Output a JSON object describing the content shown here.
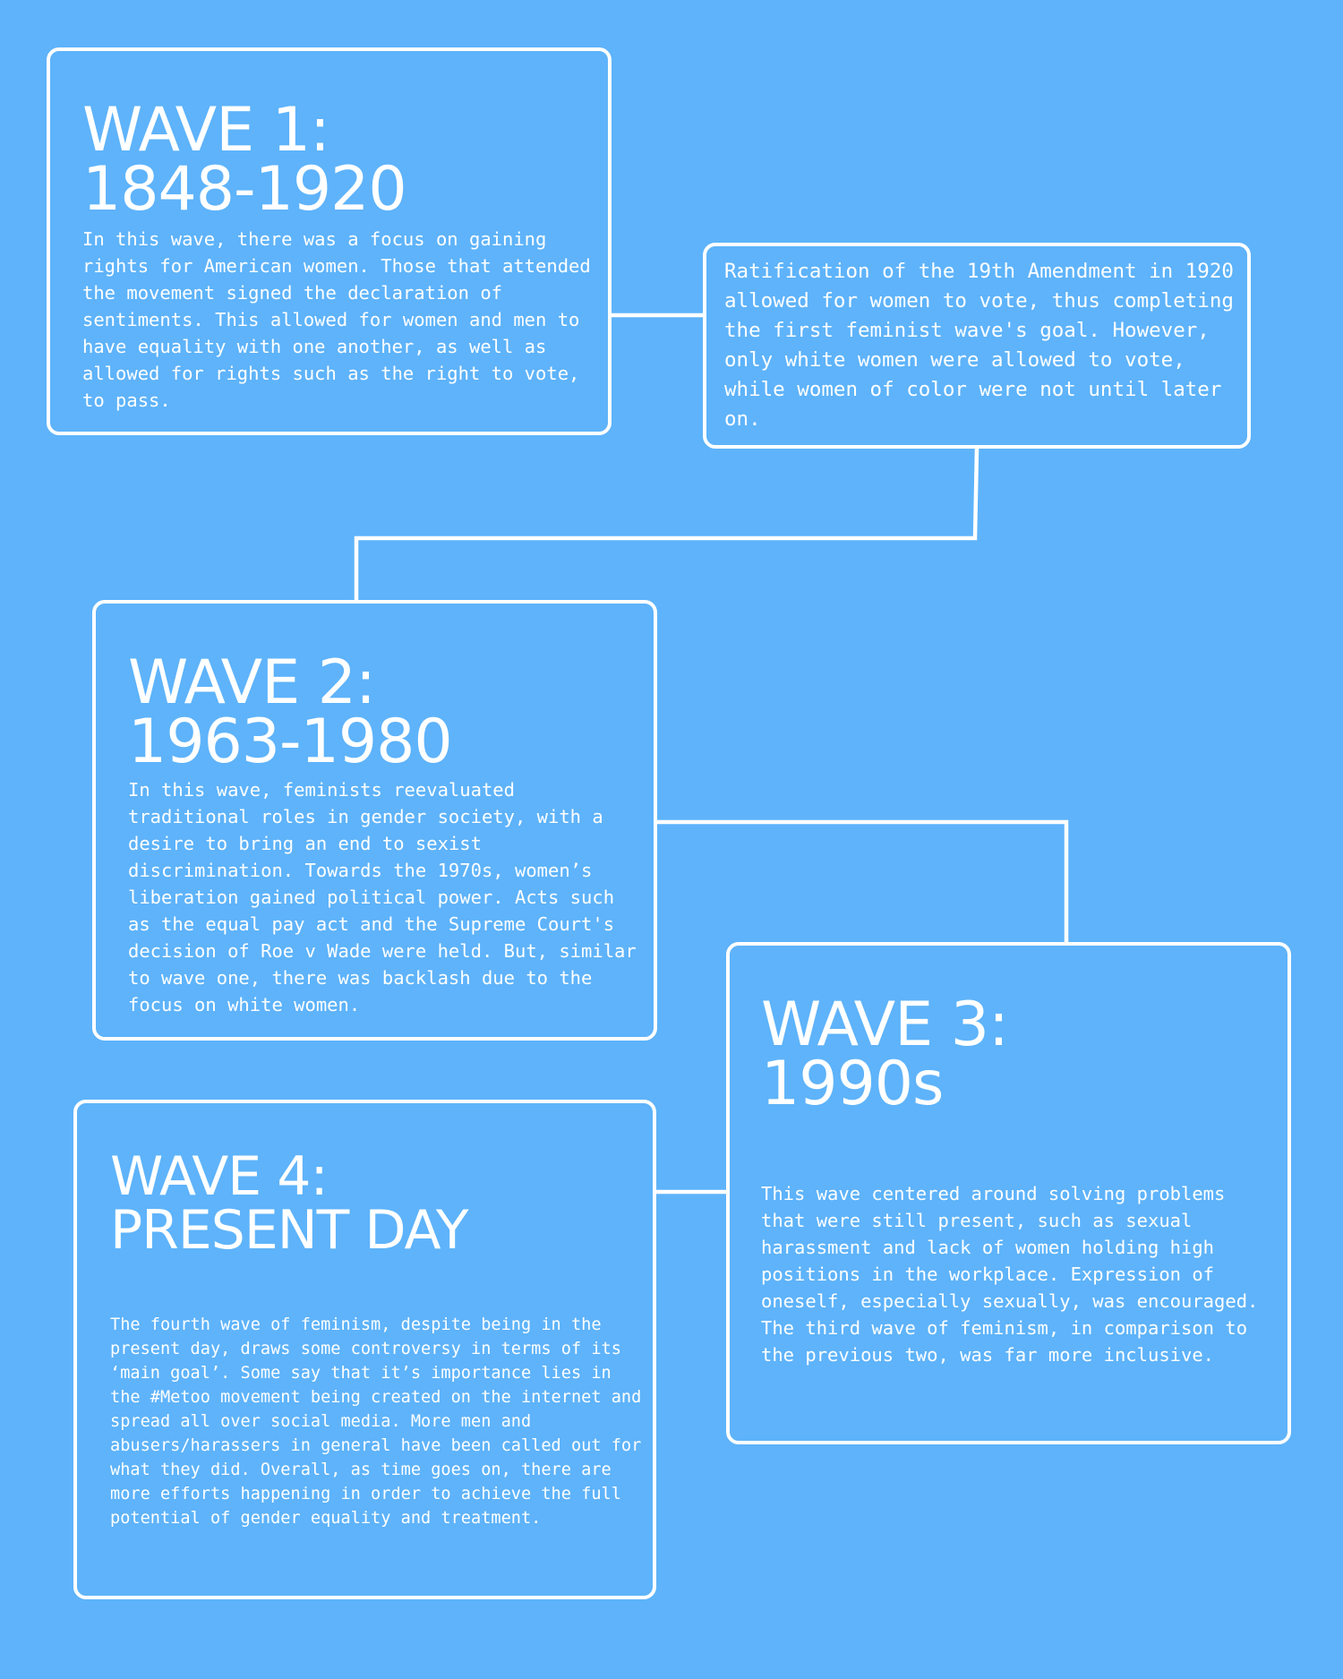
{
  "waves": [
    {
      "title_line1": "WAVE 1:",
      "title_line2": "1848-1920",
      "text": "In this wave, there was a focus on gaining rights for American women. Those that attended the movement signed the declaration of sentiments. This allowed for women and men to have equality with one another, as well as allowed for rights such as the right to vote, to pass."
    },
    {
      "title_line1": "WAVE 2:",
      "title_line2": "1963-1980",
      "text": "In this wave, feminists reevaluated traditional roles in gender society, with a desire to bring an end to sexist discrimination. Towards the 1970s, women’s liberation gained political power. Acts such as the equal pay act and the Supreme Court's decision of Roe v Wade were held. But, similar to wave one, there was backlash due to the focus on white women."
    },
    {
      "title_line1": "WAVE 3:",
      "title_line2": "1990s",
      "text": "This wave centered around solving problems that were still present, such as sexual harassment and lack of women holding high positions in the workplace. Expression of oneself, especially sexually, was encouraged. The third wave of feminism, in comparison to the previous two, was far more inclusive."
    },
    {
      "title_line1": "WAVE 4:",
      "title_line2": "PRESENT DAY",
      "text": "The fourth wave of feminism, despite being in the present day, draws some controversy in terms of its ‘main goal’. Some say that it’s importance lies in the #Metoo movement being created on the internet and spread all over social media. More men and abusers/harassers in general have been called out for what they did. Overall, as time goes on, there are more efforts happening in order to achieve the full potential of gender equality and treatment."
    }
  ],
  "notes": [
    {
      "text": "Ratification of the 19th Amendment in 1920 allowed for women to vote, thus completing the first feminist wave's goal. However, only white women were allowed to vote, while women of color were not until later on."
    }
  ],
  "colors": {
    "background": "#5eb3fa",
    "foreground": "#ffffff"
  }
}
